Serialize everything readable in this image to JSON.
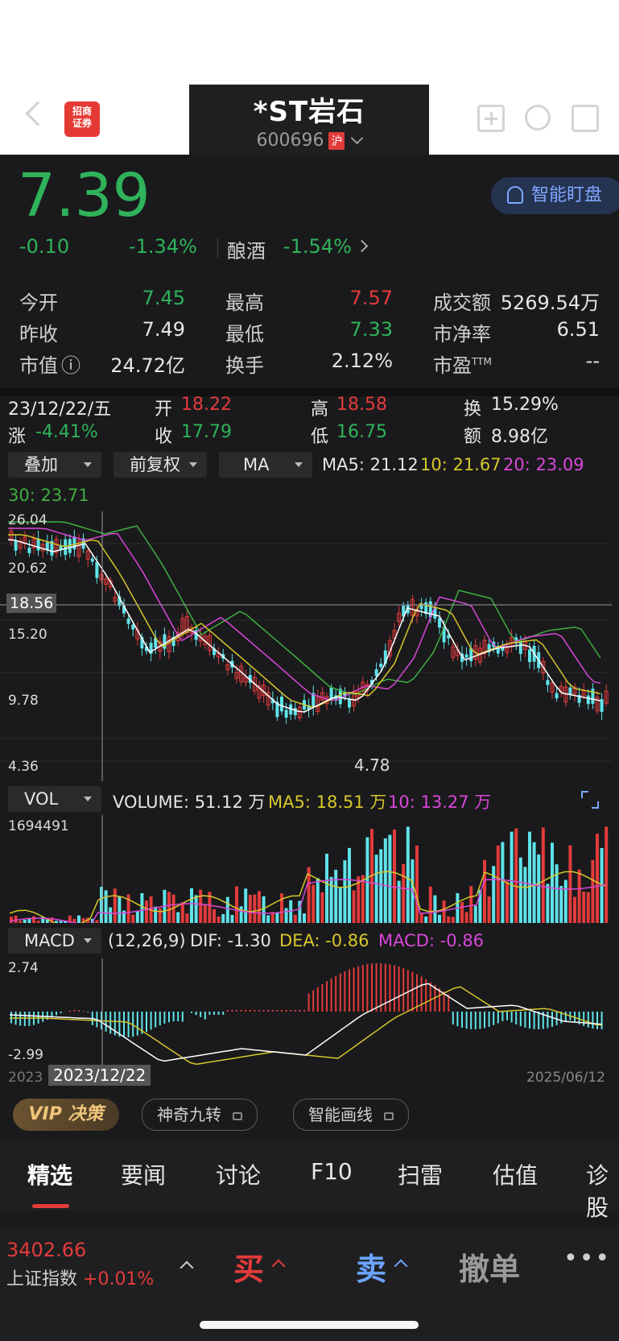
{
  "header": {
    "stock_name": "*ST岩石",
    "stock_code": "600696",
    "exchange_badge": "沪",
    "logo_text_line1": "招商",
    "logo_text_line2": "证券"
  },
  "quote": {
    "price": "7.39",
    "change": "-0.10",
    "change_pct": "-1.34%",
    "sector_name": "酿酒",
    "sector_pct": "-1.54%",
    "watch_button": "智能盯盘"
  },
  "stats": [
    {
      "label": "今开",
      "value": "7.45",
      "color": "#2fb25a"
    },
    {
      "label": "最高",
      "value": "7.57",
      "color": "#e23b3b"
    },
    {
      "label": "成交额",
      "value": "5269.54万",
      "color": "#e6e6e6"
    },
    {
      "label": "昨收",
      "value": "7.49",
      "color": "#e6e6e6"
    },
    {
      "label": "最低",
      "value": "7.33",
      "color": "#2fb25a"
    },
    {
      "label": "市净率",
      "value": "6.51",
      "color": "#e6e6e6"
    },
    {
      "label": "市值",
      "value": "24.72亿",
      "color": "#e6e6e6"
    },
    {
      "label": "换手",
      "value": "2.12%",
      "color": "#e6e6e6"
    },
    {
      "label": "市盈",
      "value": "--",
      "color": "#e6e6e6",
      "sup": "TTM"
    }
  ],
  "day_info": {
    "date": "23/12/22/五",
    "open_label": "开",
    "open": "18.22",
    "high_label": "高",
    "high": "18.58",
    "turnover_label": "换",
    "turnover": "15.29%",
    "chg_label": "涨",
    "chg": "-4.41%",
    "close_label": "收",
    "close": "17.79",
    "low_label": "低",
    "low": "16.75",
    "amount_label": "额",
    "amount": "8.98亿"
  },
  "controls": {
    "overlay": "叠加",
    "adjust": "前复权",
    "indicator": "MA",
    "vol": "VOL",
    "macd": "MACD"
  },
  "ma_legend": {
    "ma5": "MA5: 21.12",
    "ma10": "10: 21.67",
    "ma20": "20: 23.09",
    "ma30": "30: 23.71"
  },
  "price_axis": {
    "top": "26.04",
    "l2": "20.62",
    "cursor": "18.56",
    "l3": "15.20",
    "l4": "9.78",
    "bottom": "4.36",
    "low_mark": "4.78"
  },
  "vol_legend": {
    "volume": "VOLUME: 51.12 万",
    "ma5": "MA5: 18.51 万",
    "ma10": "10: 13.27 万",
    "max": "1694491"
  },
  "macd_legend": {
    "params": "(12,26,9)",
    "dif": "DIF: -1.30",
    "dea": "DEA: -0.86",
    "macd": "MACD: -0.86",
    "top": "2.74",
    "bottom": "-2.99"
  },
  "time_axis": {
    "start": "2023",
    "cursor": "2023/12/22",
    "end": "2025/06/12"
  },
  "tools": {
    "vip": "VIP 决策",
    "nine": "神奇九转",
    "draw": "智能画线"
  },
  "tabs": [
    "精选",
    "要闻",
    "讨论",
    "F10",
    "扫雷",
    "估值",
    "诊股"
  ],
  "bottom": {
    "index_value": "3402.66",
    "index_name": "上证指数",
    "index_pct": "+0.01%",
    "buy": "买",
    "sell": "卖",
    "cancel": "撤单"
  },
  "colors": {
    "up": "#e23b3b",
    "down": "#2fb25a",
    "cyan": "#5fe3ea",
    "ma5": "#ffffff",
    "ma10": "#d7c72a",
    "ma20": "#d947d9",
    "ma30": "#3fae3f"
  },
  "chart_data": {
    "type": "line",
    "x_range": [
      "2023",
      "2025/06/12"
    ],
    "ylim": [
      4.36,
      26.04
    ],
    "series": [
      {
        "name": "MA5",
        "values": [
          21.12
        ]
      },
      {
        "name": "10",
        "values": [
          21.67
        ]
      },
      {
        "name": "20",
        "values": [
          23.09
        ]
      },
      {
        "name": "30",
        "values": [
          23.71
        ]
      }
    ],
    "cursor": {
      "date": "2023/12/22",
      "price": 18.56
    },
    "period_low": 4.78
  }
}
